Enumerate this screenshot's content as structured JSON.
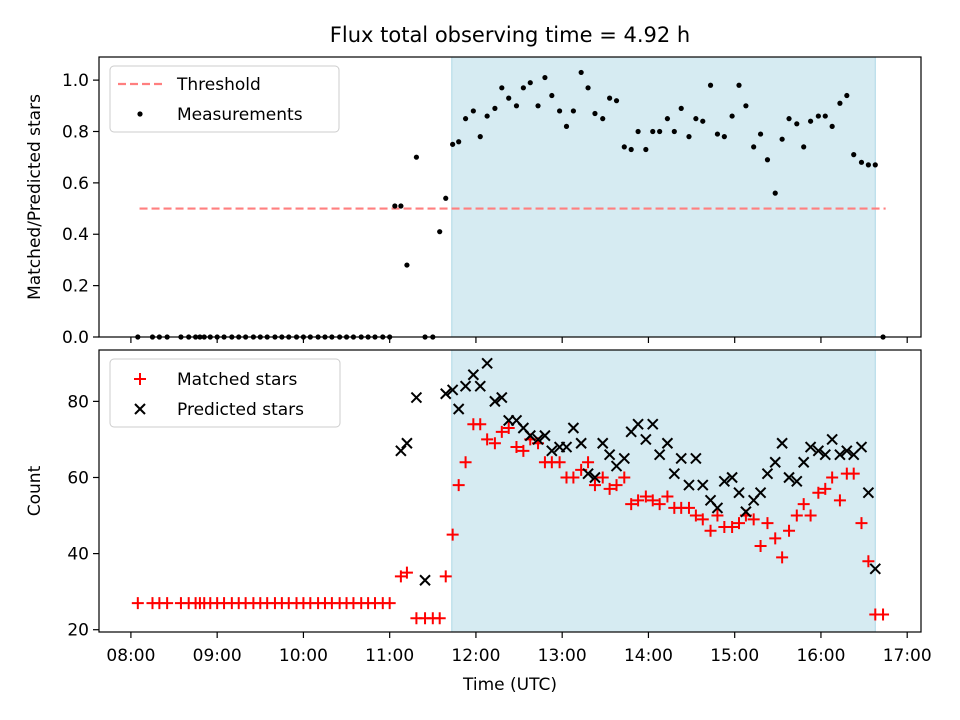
{
  "title": "Flux total observing time = 4.92 h",
  "colors": {
    "threshold": "#ff7f7f",
    "span": "#add8e6",
    "measurement": "#000000",
    "matched": "#ff0000",
    "predicted": "#000000"
  },
  "chart_data": [
    {
      "type": "scatter",
      "ylabel": "Matched/Predicted stars",
      "ylim": [
        0,
        1.09
      ],
      "yticks": [
        0.0,
        0.2,
        0.4,
        0.6,
        0.8,
        1.0
      ],
      "ytick_labels": [
        "0.0",
        "0.2",
        "0.4",
        "0.6",
        "0.8",
        "1.0"
      ],
      "legend": {
        "location": "top-left",
        "threshold_label": "Threshold",
        "measurements_label": "Measurements"
      },
      "threshold": {
        "value": 0.5,
        "x_start": 8.1,
        "x_end": 16.75
      },
      "highlight_span": [
        11.72,
        16.63
      ],
      "series": [
        {
          "name": "Measurements",
          "marker": "dot",
          "x": [
            8.08,
            8.25,
            8.33,
            8.42,
            8.58,
            8.67,
            8.75,
            8.8,
            8.85,
            8.92,
            9.0,
            9.08,
            9.17,
            9.25,
            9.33,
            9.42,
            9.5,
            9.58,
            9.67,
            9.75,
            9.83,
            9.92,
            10.0,
            10.08,
            10.17,
            10.25,
            10.33,
            10.42,
            10.5,
            10.58,
            10.67,
            10.75,
            10.83,
            10.92,
            11.0,
            11.06,
            11.13,
            11.2,
            11.31,
            11.41,
            11.5,
            11.58,
            11.65,
            11.73,
            11.8,
            11.88,
            11.97,
            12.05,
            12.13,
            12.22,
            12.3,
            12.38,
            12.47,
            12.55,
            12.63,
            12.72,
            12.8,
            12.88,
            12.97,
            13.05,
            13.13,
            13.22,
            13.3,
            13.38,
            13.47,
            13.55,
            13.63,
            13.72,
            13.8,
            13.88,
            13.97,
            14.05,
            14.13,
            14.22,
            14.3,
            14.38,
            14.47,
            14.55,
            14.63,
            14.72,
            14.8,
            14.88,
            14.97,
            15.05,
            15.13,
            15.22,
            15.3,
            15.38,
            15.47,
            15.55,
            15.63,
            15.72,
            15.8,
            15.88,
            15.97,
            16.05,
            16.13,
            16.22,
            16.3,
            16.38,
            16.47,
            16.55,
            16.63,
            16.72
          ],
          "y": [
            0,
            0,
            0,
            0,
            0,
            0,
            0,
            0,
            0,
            0,
            0,
            0,
            0,
            0,
            0,
            0,
            0,
            0,
            0,
            0,
            0,
            0,
            0,
            0,
            0,
            0,
            0,
            0,
            0,
            0,
            0,
            0,
            0,
            0,
            0,
            0.51,
            0.51,
            0.28,
            0.7,
            0,
            0,
            0.41,
            0.54,
            0.75,
            0.76,
            0.85,
            0.88,
            0.78,
            0.86,
            0.89,
            0.97,
            0.93,
            0.9,
            0.97,
            0.99,
            0.9,
            1.01,
            0.94,
            0.88,
            0.82,
            0.88,
            1.03,
            0.97,
            0.87,
            0.85,
            0.93,
            0.92,
            0.74,
            0.73,
            0.8,
            0.73,
            0.8,
            0.8,
            0.85,
            0.8,
            0.89,
            0.78,
            0.85,
            0.84,
            0.98,
            0.79,
            0.78,
            0.86,
            0.98,
            0.9,
            0.74,
            0.79,
            0.69,
            0.56,
            0.77,
            0.85,
            0.83,
            0.74,
            0.84,
            0.86,
            0.86,
            0.82,
            0.91,
            0.94,
            0.71,
            0.68,
            0.67,
            0.67,
            0
          ]
        }
      ]
    },
    {
      "type": "scatter",
      "ylabel": "Count",
      "xlabel": "Time (UTC)",
      "ylim": [
        19.4,
        93.5
      ],
      "xlim": [
        7.63,
        17.16
      ],
      "yticks": [
        20,
        40,
        60,
        80
      ],
      "ytick_labels": [
        "20",
        "40",
        "60",
        "80"
      ],
      "xticks": [
        8,
        9,
        10,
        11,
        12,
        13,
        14,
        15,
        16,
        17
      ],
      "xtick_labels": [
        "08:00",
        "09:00",
        "10:00",
        "11:00",
        "12:00",
        "13:00",
        "14:00",
        "15:00",
        "16:00",
        "17:00"
      ],
      "legend": {
        "location": "top-left",
        "matched_label": "Matched stars",
        "predicted_label": "Predicted stars"
      },
      "highlight_span": [
        11.72,
        16.63
      ],
      "series": [
        {
          "name": "Matched stars",
          "marker": "plus",
          "x": [
            8.08,
            8.25,
            8.33,
            8.42,
            8.58,
            8.67,
            8.75,
            8.8,
            8.85,
            8.92,
            9.0,
            9.08,
            9.17,
            9.25,
            9.33,
            9.42,
            9.5,
            9.58,
            9.67,
            9.75,
            9.83,
            9.92,
            10.0,
            10.08,
            10.17,
            10.25,
            10.33,
            10.42,
            10.5,
            10.58,
            10.67,
            10.75,
            10.83,
            10.92,
            11.0,
            11.13,
            11.2,
            11.31,
            11.41,
            11.5,
            11.58,
            11.65,
            11.73,
            11.8,
            11.88,
            11.97,
            12.05,
            12.13,
            12.22,
            12.3,
            12.38,
            12.47,
            12.55,
            12.63,
            12.72,
            12.8,
            12.88,
            12.97,
            13.05,
            13.13,
            13.22,
            13.3,
            13.38,
            13.47,
            13.55,
            13.63,
            13.72,
            13.8,
            13.88,
            13.97,
            14.05,
            14.13,
            14.22,
            14.3,
            14.38,
            14.47,
            14.55,
            14.63,
            14.72,
            14.8,
            14.88,
            14.97,
            15.05,
            15.13,
            15.22,
            15.3,
            15.38,
            15.47,
            15.55,
            15.63,
            15.72,
            15.8,
            15.88,
            15.97,
            16.05,
            16.13,
            16.22,
            16.3,
            16.38,
            16.47,
            16.55,
            16.63,
            16.72
          ],
          "y": [
            27,
            27,
            27,
            27,
            27,
            27,
            27,
            27,
            27,
            27,
            27,
            27,
            27,
            27,
            27,
            27,
            27,
            27,
            27,
            27,
            27,
            27,
            27,
            27,
            27,
            27,
            27,
            27,
            27,
            27,
            27,
            27,
            27,
            27,
            27,
            34,
            35,
            23,
            23,
            23,
            23,
            34,
            45,
            58,
            64,
            74,
            74,
            70,
            69,
            72,
            73,
            68,
            67,
            70,
            69,
            64,
            64,
            64,
            60,
            60,
            62,
            64,
            58,
            60,
            57,
            58,
            60,
            53,
            54,
            55,
            54,
            53,
            55,
            52,
            52,
            52,
            50,
            49,
            46,
            50,
            47,
            47,
            48,
            50,
            49,
            42,
            48,
            44,
            39,
            46,
            50,
            53,
            50,
            56,
            57,
            60,
            54,
            61,
            61,
            48,
            38,
            24,
            24
          ]
        },
        {
          "name": "Predicted stars",
          "marker": "x",
          "x": [
            11.13,
            11.2,
            11.31,
            11.41,
            11.65,
            11.73,
            11.8,
            11.88,
            11.97,
            12.05,
            12.13,
            12.22,
            12.3,
            12.38,
            12.47,
            12.55,
            12.63,
            12.72,
            12.8,
            12.88,
            12.97,
            13.05,
            13.13,
            13.22,
            13.3,
            13.38,
            13.47,
            13.55,
            13.63,
            13.72,
            13.8,
            13.88,
            13.97,
            14.05,
            14.13,
            14.22,
            14.3,
            14.38,
            14.47,
            14.55,
            14.63,
            14.72,
            14.8,
            14.88,
            14.97,
            15.05,
            15.13,
            15.22,
            15.3,
            15.38,
            15.47,
            15.55,
            15.63,
            15.72,
            15.8,
            15.88,
            15.97,
            16.05,
            16.13,
            16.22,
            16.3,
            16.38,
            16.47,
            16.55,
            16.63
          ],
          "y": [
            67,
            69,
            81,
            33,
            82,
            83,
            78,
            84,
            87,
            84,
            90,
            80,
            81,
            75,
            75,
            73,
            71,
            70,
            71,
            67,
            68,
            68,
            73,
            69,
            61,
            60,
            69,
            66,
            63,
            65,
            72,
            74,
            70,
            74,
            66,
            69,
            61,
            65,
            58,
            65,
            58,
            54,
            52,
            59,
            60,
            56,
            51,
            54,
            56,
            61,
            64,
            69,
            60,
            59,
            64,
            68,
            67,
            66,
            70,
            66,
            67,
            66,
            68,
            56,
            36
          ]
        }
      ]
    }
  ]
}
